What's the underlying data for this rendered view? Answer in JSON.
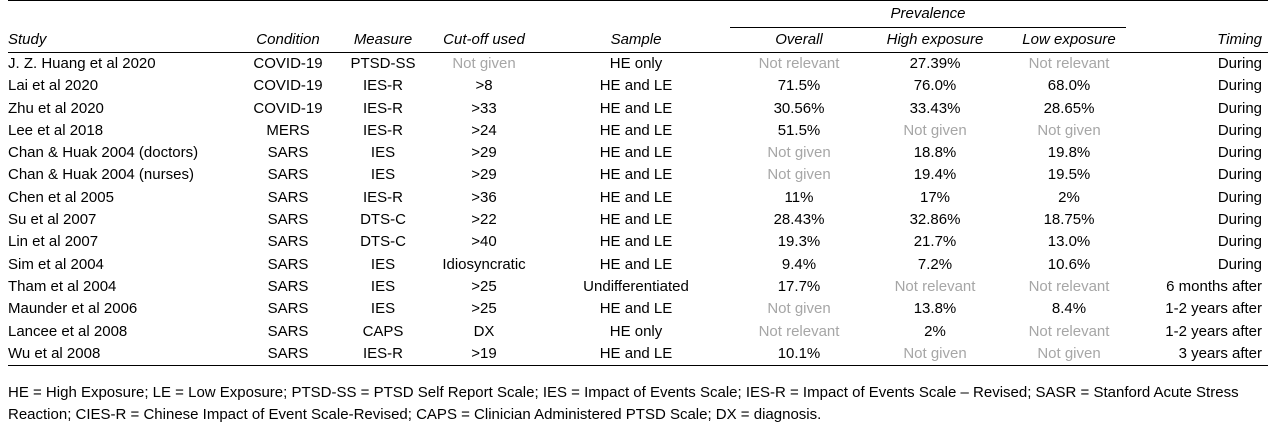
{
  "table": {
    "group_header": "Prevalence",
    "columns": [
      "Study",
      "Condition",
      "Measure",
      "Cut-off used",
      "Sample",
      "Overall",
      "High exposure",
      "Low exposure",
      "Timing"
    ],
    "rows": [
      [
        "J. Z. Huang et al 2020",
        "COVID-19",
        "PTSD-SS",
        "Not given",
        "HE only",
        "Not relevant",
        "27.39%",
        "Not relevant",
        "During"
      ],
      [
        "Lai et al 2020",
        "COVID-19",
        "IES-R",
        ">8",
        "HE and LE",
        "71.5%",
        "76.0%",
        "68.0%",
        "During"
      ],
      [
        "Zhu et al 2020",
        "COVID-19",
        "IES-R",
        ">33",
        "HE and LE",
        "30.56%",
        "33.43%",
        "28.65%",
        "During"
      ],
      [
        "Lee et al 2018",
        "MERS",
        "IES-R",
        ">24",
        "HE and LE",
        "51.5%",
        "Not given",
        "Not given",
        "During"
      ],
      [
        "Chan & Huak 2004 (doctors)",
        "SARS",
        "IES",
        ">29",
        "HE and LE",
        "Not given",
        "18.8%",
        "19.8%",
        "During"
      ],
      [
        "Chan & Huak 2004 (nurses)",
        "SARS",
        "IES",
        ">29",
        "HE and LE",
        "Not given",
        "19.4%",
        "19.5%",
        "During"
      ],
      [
        "Chen et al 2005",
        "SARS",
        "IES-R",
        ">36",
        "HE and LE",
        "11%",
        "17%",
        "2%",
        "During"
      ],
      [
        "Su et al 2007",
        "SARS",
        "DTS-C",
        ">22",
        "HE and LE",
        "28.43%",
        "32.86%",
        "18.75%",
        "During"
      ],
      [
        "Lin et al 2007",
        "SARS",
        "DTS-C",
        ">40",
        "HE and LE",
        "19.3%",
        "21.7%",
        "13.0%",
        "During"
      ],
      [
        "Sim et al 2004",
        "SARS",
        "IES",
        "Idiosyncratic",
        "HE and LE",
        "9.4%",
        "7.2%",
        "10.6%",
        "During"
      ],
      [
        "Tham et al 2004",
        "SARS",
        "IES",
        ">25",
        "Undifferentiated",
        "17.7%",
        "Not relevant",
        "Not relevant",
        "6 months after"
      ],
      [
        "Maunder et al 2006",
        "SARS",
        "IES",
        ">25",
        "HE and LE",
        "Not given",
        "13.8%",
        "8.4%",
        "1-2 years after"
      ],
      [
        "Lancee et al 2008",
        "SARS",
        "CAPS",
        "DX",
        "HE only",
        "Not relevant",
        "2%",
        "Not relevant",
        "1-2 years after"
      ],
      [
        "Wu et al 2008",
        "SARS",
        "IES-R",
        ">19",
        "HE and LE",
        "10.1%",
        "Not given",
        "Not given",
        "3 years after"
      ]
    ]
  },
  "footnote": "HE = High Exposure; LE = Low Exposure; PTSD-SS = PTSD Self Report Scale; IES = Impact of Events Scale; IES-R = Impact of Events Scale – Revised; SASR = Stanford Acute Stress Reaction; CIES-R = Chinese Impact of Event Scale-Revised; CAPS = Clinician Administered PTSD Scale; DX = diagnosis.",
  "muted_color": "#a6a6a6"
}
